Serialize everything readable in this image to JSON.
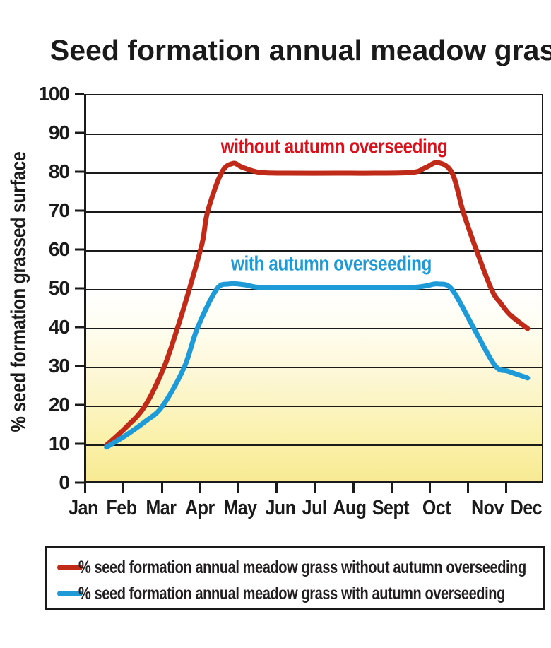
{
  "title": "Seed formation annual meadow grass",
  "y_axis": {
    "label": "% seed formation grassed surface",
    "ticks": [
      100,
      90,
      80,
      70,
      60,
      50,
      40,
      30,
      20,
      10,
      0
    ]
  },
  "x_axis": {
    "months": [
      "Jan",
      "Feb",
      "Mar",
      "Apr",
      "May",
      "Jun",
      "Jul",
      "Aug",
      "Sept",
      "Oct",
      "Nov",
      "Dec"
    ]
  },
  "annotations": {
    "without_label": "without autumn overseeding",
    "with_label": "with autumn overseeding"
  },
  "legend": {
    "items": [
      {
        "label": "% seed formation annual meadow grass without autumn overseeding",
        "color": "#bf2b18"
      },
      {
        "label": "% seed formation annual meadow grass with autumn overseeding",
        "color": "#1e9bd7"
      }
    ]
  },
  "colors": {
    "red_line": "#bf2b18",
    "red_label_text": "#d8121c",
    "blue_line": "#1e9bd7",
    "blue_label_text": "#1e9bd7",
    "grid_black": "#1a1a1a",
    "band_yellow_bottom": "#f8ea94",
    "band_yellow_top": "#ffffff"
  },
  "chart_data": {
    "type": "line",
    "title": "Seed formation annual meadow grass",
    "xlabel": "",
    "ylabel": "% seed formation grassed surface",
    "categories": [
      "Jan",
      "Feb",
      "Mar",
      "Apr",
      "May",
      "Jun",
      "Jul",
      "Aug",
      "Sept",
      "Oct",
      "Nov",
      "Dec"
    ],
    "ylim": [
      0,
      100
    ],
    "grid": true,
    "legend_position": "bottom",
    "x_unit": "month index, 0 = mid-Jan, 11 = mid-Dec",
    "series": [
      {
        "name": "% seed formation annual meadow grass without autumn overseeding",
        "color": "#bf2b18",
        "monthly_values": [
          10,
          20,
          42,
          80,
          81,
          80,
          80,
          80,
          80,
          82,
          50,
          40
        ],
        "points": [
          [
            0,
            10
          ],
          [
            0.5,
            14.5
          ],
          [
            1,
            20
          ],
          [
            1.5,
            30
          ],
          [
            1.85,
            40
          ],
          [
            2.16,
            50
          ],
          [
            2.5,
            62
          ],
          [
            2.64,
            70
          ],
          [
            3.0,
            80
          ],
          [
            3.3,
            82.5
          ],
          [
            3.55,
            81.5
          ],
          [
            4.0,
            80.2
          ],
          [
            4.7,
            80
          ],
          [
            6,
            80
          ],
          [
            7,
            80
          ],
          [
            8,
            80.2
          ],
          [
            8.35,
            81.5
          ],
          [
            8.66,
            82.7
          ],
          [
            9.03,
            80
          ],
          [
            9.32,
            70
          ],
          [
            9.67,
            60
          ],
          [
            10.06,
            50
          ],
          [
            10.3,
            46.5
          ],
          [
            10.55,
            43.5
          ],
          [
            11,
            40
          ]
        ]
      },
      {
        "name": "% seed formation annual meadow grass with autumn overseeding",
        "color": "#1e9bd7",
        "monthly_values": [
          10,
          16,
          29,
          51,
          51,
          50,
          50,
          50,
          51,
          51,
          36,
          27
        ],
        "points": [
          [
            0,
            9.5
          ],
          [
            0.5,
            12.5
          ],
          [
            1,
            16
          ],
          [
            1.46,
            20
          ],
          [
            2.03,
            30
          ],
          [
            2.37,
            40
          ],
          [
            2.87,
            50
          ],
          [
            3.2,
            51.5
          ],
          [
            3.6,
            51.3
          ],
          [
            4.0,
            50.6
          ],
          [
            5,
            50.5
          ],
          [
            6,
            50.5
          ],
          [
            7,
            50.5
          ],
          [
            8,
            50.6
          ],
          [
            8.35,
            51
          ],
          [
            8.66,
            51.5
          ],
          [
            9.03,
            50
          ],
          [
            9.6,
            40
          ],
          [
            10.15,
            30.5
          ],
          [
            10.5,
            29
          ],
          [
            11,
            27.3
          ]
        ]
      }
    ]
  }
}
